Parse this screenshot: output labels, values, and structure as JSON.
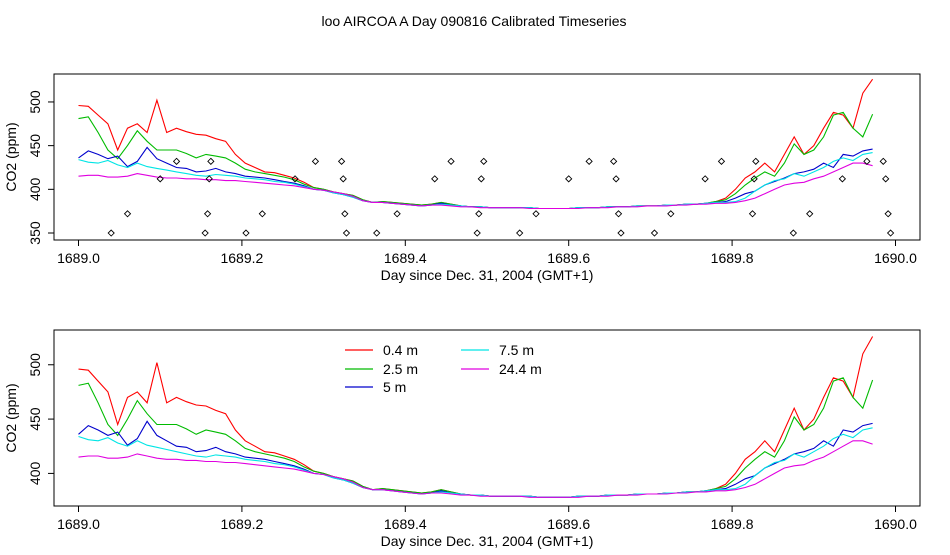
{
  "page_title": "loo AIRCOA A  Day 090816  Calibrated Timeseries",
  "chart_data": [
    {
      "type": "line",
      "xlabel": "Day since Dec. 31, 2004 (GMT+1)",
      "ylabel": "CO2 (ppm)",
      "xlim": [
        1688.97,
        1690.03
      ],
      "ylim": [
        342,
        532
      ],
      "x_ticks": [
        1689.0,
        1689.2,
        1689.4,
        1689.6,
        1689.8,
        1690.0
      ],
      "x_tick_labels": [
        "1689.0",
        "1689.2",
        "1689.4",
        "1689.6",
        "1689.8",
        "1690.0"
      ],
      "y_ticks": [
        350,
        400,
        450,
        500
      ],
      "y_tick_labels": [
        "350",
        "400",
        "450",
        "500"
      ],
      "colors": [
        "#ff0000",
        "#00bb00",
        "#0000cc",
        "#00e5e5",
        "#e000e0"
      ],
      "series": [
        {
          "values": [
            496,
            495,
            485,
            475,
            445,
            470,
            475,
            465,
            502,
            465,
            470,
            466,
            463,
            462,
            458,
            455,
            440,
            430,
            425,
            420,
            419,
            416,
            413,
            408,
            402,
            400,
            397,
            395,
            393,
            388,
            385,
            386,
            385,
            384,
            383,
            382,
            383,
            385,
            383,
            381,
            380,
            380,
            379,
            379,
            379,
            379,
            379,
            378,
            378,
            378,
            378,
            379,
            379,
            379,
            380,
            380,
            380,
            381,
            381,
            381,
            382,
            382,
            383,
            383,
            384,
            386,
            390,
            400,
            413,
            420,
            430,
            420,
            440,
            460,
            440,
            450,
            470,
            488,
            485,
            470,
            510,
            526
          ]
        },
        {
          "values": [
            481,
            483,
            465,
            445,
            435,
            450,
            467,
            455,
            445,
            445,
            445,
            441,
            436,
            440,
            438,
            436,
            430,
            423,
            420,
            418,
            416,
            414,
            411,
            406,
            402,
            400,
            397,
            395,
            393,
            388,
            385,
            386,
            385,
            384,
            383,
            382,
            383,
            385,
            383,
            381,
            380,
            380,
            379,
            379,
            379,
            379,
            379,
            378,
            378,
            378,
            378,
            379,
            379,
            379,
            380,
            380,
            380,
            381,
            381,
            381,
            382,
            382,
            383,
            383,
            384,
            386,
            388,
            395,
            405,
            413,
            420,
            415,
            430,
            452,
            440,
            445,
            460,
            485,
            488,
            470,
            460,
            486
          ]
        },
        {
          "values": [
            436,
            444,
            440,
            435,
            438,
            426,
            432,
            448,
            435,
            430,
            425,
            424,
            420,
            421,
            424,
            420,
            418,
            415,
            414,
            413,
            411,
            409,
            407,
            404,
            400,
            399,
            396,
            394,
            391,
            387,
            385,
            385,
            384,
            383,
            382,
            381,
            382,
            384,
            382,
            381,
            380,
            380,
            379,
            379,
            379,
            379,
            379,
            378,
            378,
            378,
            378,
            379,
            379,
            379,
            380,
            380,
            380,
            381,
            381,
            381,
            382,
            382,
            383,
            383,
            384,
            385,
            386,
            390,
            395,
            398,
            405,
            409,
            413,
            418,
            420,
            423,
            430,
            425,
            440,
            438,
            444,
            446
          ]
        },
        {
          "values": [
            434,
            431,
            430,
            433,
            428,
            425,
            430,
            426,
            424,
            422,
            420,
            418,
            416,
            415,
            417,
            416,
            415,
            413,
            412,
            411,
            409,
            408,
            406,
            403,
            400,
            399,
            396,
            394,
            391,
            387,
            385,
            385,
            384,
            383,
            382,
            381,
            382,
            383,
            382,
            381,
            380,
            380,
            379,
            379,
            379,
            379,
            379,
            378,
            378,
            378,
            378,
            379,
            379,
            379,
            380,
            380,
            380,
            381,
            381,
            381,
            382,
            382,
            383,
            383,
            384,
            385,
            385,
            386,
            390,
            398,
            405,
            410,
            412,
            418,
            415,
            420,
            425,
            432,
            436,
            433,
            440,
            442
          ]
        },
        {
          "values": [
            415,
            416,
            416,
            414,
            414,
            415,
            418,
            416,
            414,
            413,
            413,
            412,
            412,
            411,
            411,
            410,
            410,
            409,
            408,
            407,
            406,
            405,
            404,
            402,
            400,
            399,
            397,
            395,
            392,
            387,
            385,
            385,
            384,
            383,
            382,
            381,
            382,
            382,
            381,
            380,
            380,
            379,
            379,
            379,
            379,
            379,
            378,
            378,
            378,
            378,
            378,
            378,
            379,
            379,
            379,
            380,
            380,
            380,
            381,
            381,
            381,
            382,
            382,
            383,
            383,
            384,
            384,
            385,
            387,
            390,
            395,
            400,
            405,
            407,
            408,
            412,
            415,
            420,
            425,
            430,
            430,
            427
          ]
        }
      ],
      "scatter": {
        "x": [
          1689.04,
          1689.06,
          1689.1,
          1689.12,
          1689.155,
          1689.158,
          1689.16,
          1689.162,
          1689.205,
          1689.225,
          1689.265,
          1689.29,
          1689.322,
          1689.324,
          1689.326,
          1689.328,
          1689.365,
          1689.39,
          1689.436,
          1689.456,
          1689.488,
          1689.49,
          1689.493,
          1689.496,
          1689.54,
          1689.56,
          1689.6,
          1689.625,
          1689.655,
          1689.658,
          1689.661,
          1689.664,
          1689.705,
          1689.725,
          1689.767,
          1689.787,
          1689.825,
          1689.827,
          1689.829,
          1689.875,
          1689.895,
          1689.935,
          1689.965,
          1689.985,
          1689.988,
          1689.991,
          1689.994
        ],
        "y": [
          350,
          372,
          412,
          432,
          350,
          372,
          412,
          432,
          350,
          372,
          412,
          432,
          432,
          412,
          372,
          350,
          350,
          372,
          412,
          432,
          350,
          372,
          412,
          432,
          350,
          372,
          412,
          432,
          432,
          412,
          372,
          350,
          350,
          372,
          412,
          432,
          372,
          412,
          432,
          350,
          372,
          412,
          432,
          432,
          412,
          372,
          350
        ]
      }
    },
    {
      "type": "line",
      "xlabel": "Day since Dec. 31, 2004 (GMT+1)",
      "ylabel": "CO2 (ppm)",
      "xlim": [
        1688.97,
        1690.03
      ],
      "ylim": [
        370,
        532
      ],
      "x_ticks": [
        1689.0,
        1689.2,
        1689.4,
        1689.6,
        1689.8,
        1690.0
      ],
      "x_tick_labels": [
        "1689.0",
        "1689.2",
        "1689.4",
        "1689.6",
        "1689.8",
        "1690.0"
      ],
      "y_ticks": [
        400,
        450,
        500
      ],
      "y_tick_labels": [
        "400",
        "450",
        "500"
      ],
      "legend": {
        "placement": "top-left",
        "entries": [
          {
            "label": "0.4 m",
            "color": "#ff0000"
          },
          {
            "label": "2.5 m",
            "color": "#00bb00"
          },
          {
            "label": "5 m",
            "color": "#0000cc"
          },
          {
            "label": "7.5 m",
            "color": "#00e5e5"
          },
          {
            "label": "24.4 m",
            "color": "#e000e0"
          }
        ]
      },
      "series": [
        {
          "name": "0.4 m",
          "values": [
            496,
            495,
            485,
            475,
            445,
            470,
            475,
            465,
            502,
            465,
            470,
            466,
            463,
            462,
            458,
            455,
            440,
            430,
            425,
            420,
            419,
            416,
            413,
            408,
            402,
            400,
            397,
            395,
            393,
            388,
            385,
            386,
            385,
            384,
            383,
            382,
            383,
            385,
            383,
            381,
            380,
            380,
            379,
            379,
            379,
            379,
            379,
            378,
            378,
            378,
            378,
            379,
            379,
            379,
            380,
            380,
            380,
            381,
            381,
            381,
            382,
            382,
            383,
            383,
            384,
            386,
            390,
            400,
            413,
            420,
            430,
            420,
            440,
            460,
            440,
            450,
            470,
            488,
            485,
            470,
            510,
            526
          ]
        },
        {
          "name": "2.5 m",
          "values": [
            481,
            483,
            465,
            445,
            435,
            450,
            467,
            455,
            445,
            445,
            445,
            441,
            436,
            440,
            438,
            436,
            430,
            423,
            420,
            418,
            416,
            414,
            411,
            406,
            402,
            400,
            397,
            395,
            393,
            388,
            385,
            386,
            385,
            384,
            383,
            382,
            383,
            385,
            383,
            381,
            380,
            380,
            379,
            379,
            379,
            379,
            379,
            378,
            378,
            378,
            378,
            379,
            379,
            379,
            380,
            380,
            380,
            381,
            381,
            381,
            382,
            382,
            383,
            383,
            384,
            386,
            388,
            395,
            405,
            413,
            420,
            415,
            430,
            452,
            440,
            445,
            460,
            485,
            488,
            470,
            460,
            486
          ]
        },
        {
          "name": "5 m",
          "values": [
            436,
            444,
            440,
            435,
            438,
            426,
            432,
            448,
            435,
            430,
            425,
            424,
            420,
            421,
            424,
            420,
            418,
            415,
            414,
            413,
            411,
            409,
            407,
            404,
            400,
            399,
            396,
            394,
            391,
            387,
            385,
            385,
            384,
            383,
            382,
            381,
            382,
            384,
            382,
            381,
            380,
            380,
            379,
            379,
            379,
            379,
            379,
            378,
            378,
            378,
            378,
            379,
            379,
            379,
            380,
            380,
            380,
            381,
            381,
            381,
            382,
            382,
            383,
            383,
            384,
            385,
            386,
            390,
            395,
            398,
            405,
            409,
            413,
            418,
            420,
            423,
            430,
            425,
            440,
            438,
            444,
            446
          ]
        },
        {
          "name": "7.5 m",
          "values": [
            434,
            431,
            430,
            433,
            428,
            425,
            430,
            426,
            424,
            422,
            420,
            418,
            416,
            415,
            417,
            416,
            415,
            413,
            412,
            411,
            409,
            408,
            406,
            403,
            400,
            399,
            396,
            394,
            391,
            387,
            385,
            385,
            384,
            383,
            382,
            381,
            382,
            383,
            382,
            381,
            380,
            380,
            379,
            379,
            379,
            379,
            379,
            378,
            378,
            378,
            378,
            379,
            379,
            379,
            380,
            380,
            380,
            381,
            381,
            381,
            382,
            382,
            383,
            383,
            384,
            385,
            385,
            386,
            390,
            398,
            405,
            410,
            412,
            418,
            415,
            420,
            425,
            432,
            436,
            433,
            440,
            442
          ]
        },
        {
          "name": "24.4 m",
          "values": [
            415,
            416,
            416,
            414,
            414,
            415,
            418,
            416,
            414,
            413,
            413,
            412,
            412,
            411,
            411,
            410,
            410,
            409,
            408,
            407,
            406,
            405,
            404,
            402,
            400,
            399,
            397,
            395,
            392,
            387,
            385,
            385,
            384,
            383,
            382,
            381,
            382,
            382,
            381,
            380,
            380,
            379,
            379,
            379,
            379,
            379,
            378,
            378,
            378,
            378,
            378,
            378,
            379,
            379,
            379,
            380,
            380,
            380,
            381,
            381,
            381,
            382,
            382,
            383,
            383,
            384,
            384,
            385,
            387,
            390,
            395,
            400,
            405,
            407,
            408,
            412,
            415,
            420,
            425,
            430,
            430,
            427
          ]
        }
      ]
    }
  ]
}
